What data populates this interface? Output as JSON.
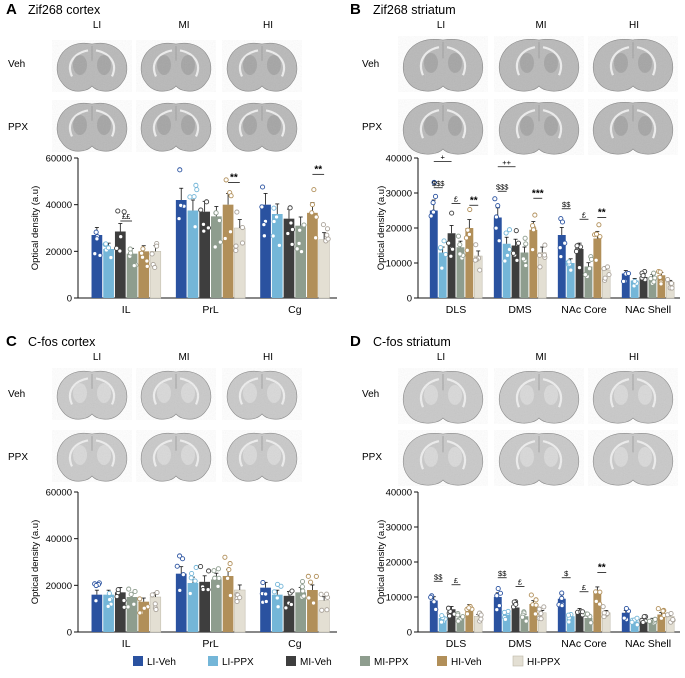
{
  "colors": {
    "LI-Veh": "#2a52a0",
    "LI-PPX": "#74b6d8",
    "MI-Veh": "#3e3e3e",
    "MI-PPX": "#8e9d8e",
    "HI-Veh": "#b18f59",
    "HI-PPX": "#e3dfd3"
  },
  "groups": [
    "LI-Veh",
    "LI-PPX",
    "MI-Veh",
    "MI-PPX",
    "HI-Veh",
    "HI-PPX"
  ],
  "legend": [
    "LI-Veh",
    "LI-PPX",
    "MI-Veh",
    "MI-PPX",
    "HI-Veh",
    "HI-PPX"
  ],
  "panels": [
    {
      "letter": "A",
      "title": "Zif268 cortex",
      "columns": [
        "LI",
        "MI",
        "HI"
      ],
      "rows": [
        "Veh",
        "PPX"
      ],
      "chart_data": {
        "type": "bar",
        "categories": [
          "IL",
          "PrL",
          "Cg"
        ],
        "ylabel": "Optical density (a.u)",
        "ylim": [
          0,
          60000
        ],
        "yticks": [
          "0",
          "20000",
          "40000",
          "60000"
        ],
        "series": [
          {
            "name": "LI-Veh",
            "values": [
              27000,
              42000,
              40000
            ]
          },
          {
            "name": "LI-PPX",
            "values": [
              21000,
              37500,
              36000
            ]
          },
          {
            "name": "MI-Veh",
            "values": [
              28500,
              37000,
              34000
            ]
          },
          {
            "name": "MI-PPX",
            "values": [
              19000,
              35000,
              31000
            ]
          },
          {
            "name": "HI-Veh",
            "values": [
              20000,
              40000,
              36500
            ]
          },
          {
            "name": "HI-PPX",
            "values": [
              20000,
              30000,
              25000
            ]
          }
        ],
        "annotations": [
          {
            "text": "££",
            "category": "IL",
            "from": 2,
            "to": 3,
            "y": 33000,
            "style": "small"
          },
          {
            "text": "**",
            "category": "PrL",
            "from": 4,
            "to": 5,
            "y": 49500,
            "style": "bold"
          },
          {
            "text": "**",
            "category": "Cg",
            "from": 4,
            "to": 5,
            "y": 53000,
            "style": "bold"
          }
        ]
      }
    },
    {
      "letter": "B",
      "title": "Zif268 striatum",
      "columns": [
        "LI",
        "MI",
        "HI"
      ],
      "rows": [
        "Veh",
        "PPX"
      ],
      "chart_data": {
        "type": "bar",
        "categories": [
          "DLS",
          "DMS",
          "NAc Core",
          "NAc Shell"
        ],
        "ylabel": "Optical density (a.u)",
        "ylim": [
          0,
          40000
        ],
        "yticks": [
          "0",
          "10000",
          "20000",
          "30000",
          "40000"
        ],
        "series": [
          {
            "name": "LI-Veh",
            "values": [
              25000,
              23000,
              18000,
              7000
            ]
          },
          {
            "name": "LI-PPX",
            "values": [
              13000,
              15500,
              10000,
              5000
            ]
          },
          {
            "name": "MI-Veh",
            "values": [
              18500,
              15000,
              14000,
              6000
            ]
          },
          {
            "name": "MI-PPX",
            "values": [
              14500,
              13000,
              9000,
              6000
            ]
          },
          {
            "name": "HI-Veh",
            "values": [
              20000,
              19500,
              17000,
              6500
            ]
          },
          {
            "name": "HI-PPX",
            "values": [
              12000,
              13000,
              8000,
              4500
            ]
          }
        ],
        "annotations": [
          {
            "text": "+",
            "category": "DLS",
            "from": 0,
            "to": 2,
            "y": 39000,
            "style": "small"
          },
          {
            "text": "$$$",
            "category": "DLS",
            "from": 0,
            "to": 1,
            "y": 31500,
            "style": "small"
          },
          {
            "text": "£",
            "category": "DLS",
            "from": 2,
            "to": 3,
            "y": 27000,
            "style": "small"
          },
          {
            "text": "**",
            "category": "DLS",
            "from": 4,
            "to": 5,
            "y": 26500,
            "style": "bold"
          },
          {
            "text": "++",
            "category": "DMS",
            "from": 0,
            "to": 2,
            "y": 37500,
            "style": "small"
          },
          {
            "text": "$$$",
            "category": "DMS",
            "from": 0,
            "to": 1,
            "y": 30500,
            "style": "small"
          },
          {
            "text": "***",
            "category": "DMS",
            "from": 4,
            "to": 5,
            "y": 28500,
            "style": "bold"
          },
          {
            "text": "$$",
            "category": "NAc Core",
            "from": 0,
            "to": 1,
            "y": 25500,
            "style": "small"
          },
          {
            "text": "£",
            "category": "NAc Core",
            "from": 2,
            "to": 3,
            "y": 22500,
            "style": "small"
          },
          {
            "text": "**",
            "category": "NAc Core",
            "from": 4,
            "to": 5,
            "y": 23000,
            "style": "bold"
          }
        ]
      }
    },
    {
      "letter": "C",
      "title": "C-fos cortex",
      "columns": [
        "LI",
        "MI",
        "HI"
      ],
      "rows": [
        "Veh",
        "PPX"
      ],
      "chart_data": {
        "type": "bar",
        "categories": [
          "IL",
          "PrL",
          "Cg"
        ],
        "ylabel": "Optical density (a.u)",
        "ylim": [
          0,
          60000
        ],
        "yticks": [
          "0",
          "20000",
          "40000",
          "60000"
        ],
        "series": [
          {
            "name": "LI-Veh",
            "values": [
              16000,
              25000,
              19000
            ]
          },
          {
            "name": "LI-PPX",
            "values": [
              16000,
              21000,
              16000
            ]
          },
          {
            "name": "MI-Veh",
            "values": [
              17000,
              21500,
              15500
            ]
          },
          {
            "name": "MI-PPX",
            "values": [
              15000,
              22500,
              17000
            ]
          },
          {
            "name": "HI-Veh",
            "values": [
              13000,
              24000,
              18000
            ]
          },
          {
            "name": "HI-PPX",
            "values": [
              15000,
              18000,
              13500
            ]
          }
        ],
        "annotations": []
      }
    },
    {
      "letter": "D",
      "title": "C-fos striatum",
      "columns": [
        "LI",
        "MI",
        "HI"
      ],
      "rows": [
        "Veh",
        "PPX"
      ],
      "chart_data": {
        "type": "bar",
        "categories": [
          "DLS",
          "DMS",
          "NAc Core",
          "NAc Shell"
        ],
        "ylabel": "Optical density (a.u)",
        "ylim": [
          0,
          40000
        ],
        "yticks": [
          "0",
          "10000",
          "20000",
          "30000",
          "40000"
        ],
        "series": [
          {
            "name": "LI-Veh",
            "values": [
              9000,
              10000,
              9500,
              5500
            ]
          },
          {
            "name": "LI-PPX",
            "values": [
              4000,
              5000,
              4500,
              3000
            ]
          },
          {
            "name": "MI-Veh",
            "values": [
              6500,
              7000,
              6000,
              3500
            ]
          },
          {
            "name": "MI-PPX",
            "values": [
              4000,
              4500,
              4000,
              3500
            ]
          },
          {
            "name": "HI-Veh",
            "values": [
              7000,
              8000,
              11500,
              5000
            ]
          },
          {
            "name": "HI-PPX",
            "values": [
              4500,
              5500,
              5500,
              4500
            ]
          }
        ],
        "annotations": [
          {
            "text": "$$",
            "category": "DLS",
            "from": 0,
            "to": 1,
            "y": 14500,
            "style": "small"
          },
          {
            "text": "£",
            "category": "DLS",
            "from": 2,
            "to": 3,
            "y": 13500,
            "style": "small"
          },
          {
            "text": "$$",
            "category": "DMS",
            "from": 0,
            "to": 1,
            "y": 15500,
            "style": "small"
          },
          {
            "text": "£",
            "category": "DMS",
            "from": 2,
            "to": 3,
            "y": 13000,
            "style": "small"
          },
          {
            "text": "$",
            "category": "NAc Core",
            "from": 0,
            "to": 1,
            "y": 15500,
            "style": "small"
          },
          {
            "text": "£",
            "category": "NAc Core",
            "from": 2,
            "to": 3,
            "y": 11500,
            "style": "small"
          },
          {
            "text": "**",
            "category": "NAc Core",
            "from": 4,
            "to": 5,
            "y": 17000,
            "style": "bold"
          }
        ]
      }
    }
  ]
}
